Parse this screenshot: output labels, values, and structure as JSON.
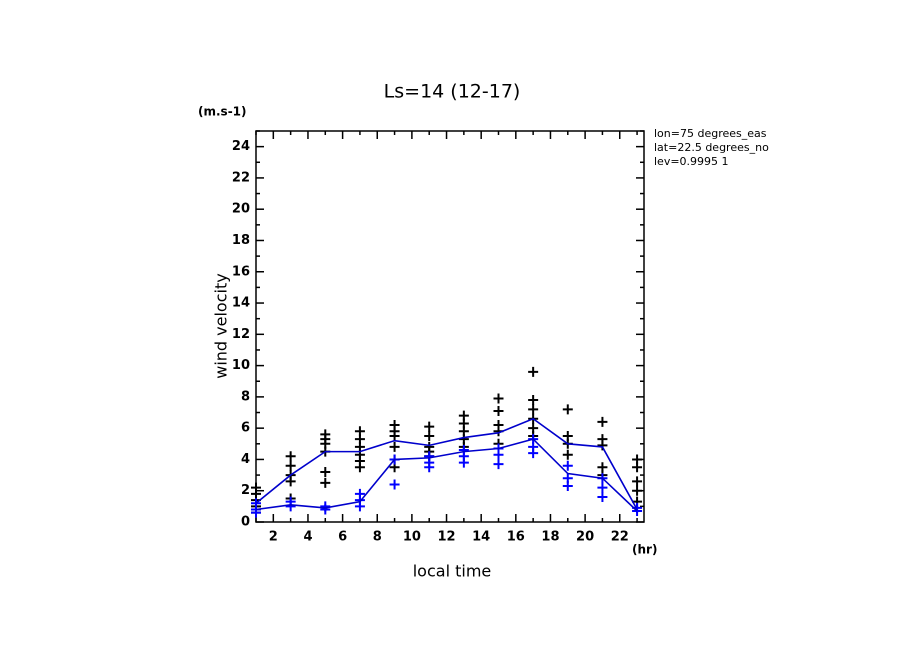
{
  "chart_data": {
    "type": "scatter",
    "title": "Ls=14 (12-17)",
    "y_unit": "(m.s-1)",
    "y_label": "wind velocity",
    "x_label": "local time",
    "x_unit": "(hr)",
    "annotations": [
      "lon=75 degrees_eas",
      "lat=22.5 degrees_no",
      "lev=0.9995 1"
    ],
    "xlim": [
      1,
      23.4
    ],
    "ylim": [
      0,
      25
    ],
    "xticks": [
      2,
      4,
      6,
      8,
      10,
      12,
      14,
      16,
      18,
      20,
      22
    ],
    "xminorticks": [
      1,
      3,
      5,
      7,
      9,
      11,
      13,
      15,
      17,
      19,
      21,
      23
    ],
    "yticks": [
      0,
      2,
      4,
      6,
      8,
      10,
      12,
      14,
      16,
      18,
      20,
      22,
      24
    ],
    "yminorticks": [
      1,
      3,
      5,
      7,
      9,
      11,
      13,
      15,
      17,
      19,
      21,
      23,
      25
    ],
    "series": [
      {
        "mode": "markers",
        "color": "#000000",
        "x": [
          1,
          1,
          1,
          1,
          1,
          3,
          3,
          3,
          3,
          3,
          5,
          5,
          5,
          5,
          5,
          5,
          7,
          7,
          7,
          7,
          7,
          7,
          9,
          9,
          9,
          9,
          9,
          9,
          11,
          11,
          11,
          11,
          11,
          13,
          13,
          13,
          13,
          13,
          15,
          15,
          15,
          15,
          15,
          17,
          17,
          17,
          17,
          17,
          17,
          19,
          19,
          19,
          19,
          21,
          21,
          21,
          21,
          21,
          23,
          23,
          23,
          23,
          23
        ],
        "values": [
          2.2,
          1.8,
          1.4,
          1.0,
          0.6,
          4.2,
          3.6,
          3.0,
          2.6,
          1.5,
          5.6,
          5.3,
          5.0,
          4.5,
          3.2,
          2.5,
          5.8,
          5.3,
          4.8,
          4.3,
          3.9,
          3.5,
          6.2,
          5.8,
          5.5,
          4.8,
          4.0,
          3.5,
          6.1,
          5.5,
          4.8,
          4.5,
          4.2,
          6.8,
          6.3,
          5.8,
          5.3,
          4.8,
          7.9,
          7.1,
          6.2,
          5.8,
          5.0,
          9.6,
          7.8,
          7.2,
          6.6,
          6.0,
          5.5,
          7.2,
          5.5,
          5.0,
          4.3,
          6.4,
          5.3,
          4.9,
          3.5,
          3.0,
          4.0,
          3.5,
          2.6,
          2.0,
          1.3
        ]
      },
      {
        "mode": "markers",
        "color": "#0000ff",
        "x": [
          1,
          1,
          1,
          3,
          3,
          5,
          5,
          7,
          7,
          7,
          9,
          9,
          11,
          11,
          11,
          13,
          13,
          13,
          15,
          15,
          15,
          17,
          17,
          17,
          19,
          19,
          19,
          21,
          21,
          21,
          23,
          23
        ],
        "values": [
          1.2,
          0.8,
          0.6,
          1.3,
          1.0,
          1.0,
          0.8,
          1.8,
          1.4,
          1.0,
          2.4,
          4.0,
          4.2,
          3.8,
          3.5,
          4.6,
          4.2,
          3.8,
          4.7,
          4.3,
          3.7,
          5.3,
          4.8,
          4.4,
          3.6,
          2.8,
          2.3,
          2.8,
          2.2,
          1.6,
          0.9,
          0.7
        ]
      },
      {
        "mode": "lines",
        "color": "#0000cc",
        "x": [
          1,
          3,
          5,
          7,
          9,
          11,
          13,
          15,
          17,
          19,
          21,
          23
        ],
        "values": [
          1.2,
          3.0,
          4.5,
          4.5,
          5.2,
          4.9,
          5.4,
          5.7,
          6.6,
          5.0,
          4.8,
          0.8
        ]
      },
      {
        "mode": "lines",
        "color": "#0000cc",
        "x": [
          1,
          3,
          5,
          7,
          9,
          11,
          13,
          15,
          17,
          19,
          21,
          23
        ],
        "values": [
          0.8,
          1.1,
          0.9,
          1.3,
          4.0,
          4.1,
          4.5,
          4.7,
          5.3,
          3.1,
          2.8,
          0.7
        ]
      }
    ]
  }
}
